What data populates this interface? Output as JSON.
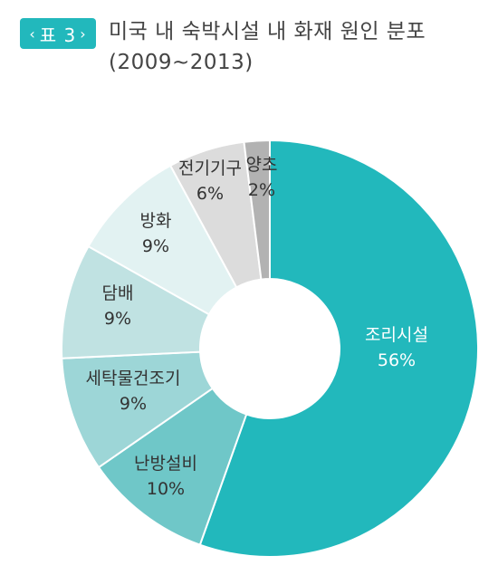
{
  "header": {
    "tag_label": "표 3",
    "title_line1": "미국 내 숙박시설 내 화재 원인 분포",
    "title_line2": "(2009~2013)"
  },
  "colors": {
    "accent": "#22b8bc",
    "title_text": "#444444"
  },
  "chart_data": {
    "type": "pie",
    "title": "미국 내 숙박시설 내 화재 원인 분포 (2009~2013)",
    "donut": true,
    "categories": [
      "조리시설",
      "난방설비",
      "세탁물건조기",
      "담배",
      "방화",
      "전기기구",
      "양초"
    ],
    "values": [
      56,
      10,
      9,
      9,
      9,
      6,
      2
    ],
    "labels": [
      "56%",
      "10%",
      "9%",
      "9%",
      "9%",
      "6%",
      "2%"
    ],
    "colors": [
      "#22b8bc",
      "#6fc7c8",
      "#9dd6d7",
      "#c0e2e2",
      "#e2f2f2",
      "#dcdcdc",
      "#b2b2b2"
    ]
  }
}
